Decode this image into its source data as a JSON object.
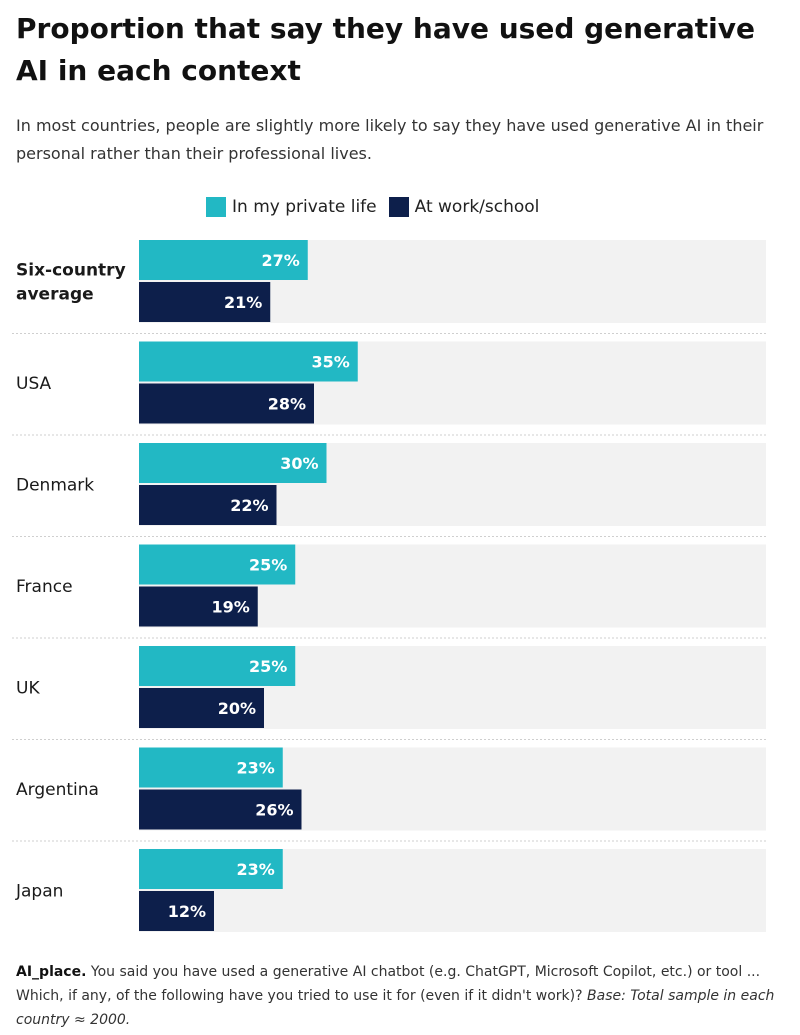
{
  "title": "Proportion that say they have used generative AI in each context",
  "subtitle": "In most countries, people are slightly more likely to say they have used generative AI in their personal rather than their professional lives.",
  "colors": {
    "private": "#22b8c4",
    "work": "#0d1f4b",
    "panel": "#f2f2f2",
    "label_text": "#ffffff"
  },
  "chart_data": {
    "type": "bar",
    "orientation": "horizontal",
    "xlim": [
      0,
      100
    ],
    "value_suffix": "%",
    "categories": [
      {
        "line1": "Six-country",
        "line2": "average",
        "bold": true
      },
      {
        "line1": "USA"
      },
      {
        "line1": "Denmark"
      },
      {
        "line1": "France"
      },
      {
        "line1": "UK"
      },
      {
        "line1": "Argentina"
      },
      {
        "line1": "Japan"
      }
    ],
    "series": [
      {
        "name": "In my private life",
        "values": [
          27,
          35,
          30,
          25,
          25,
          23,
          23
        ]
      },
      {
        "name": "At work/school",
        "values": [
          21,
          28,
          22,
          19,
          20,
          26,
          12
        ]
      }
    ]
  },
  "footnote": {
    "code": "AI_place.",
    "text": " You said you have used a generative AI chatbot (e.g. ChatGPT, Microsoft Copilot, etc.) or tool ... Which, if any, of the following have you tried to use it for (even if it didn't work)?",
    "base": " Base: Total sample in each country ≈ 2000."
  }
}
